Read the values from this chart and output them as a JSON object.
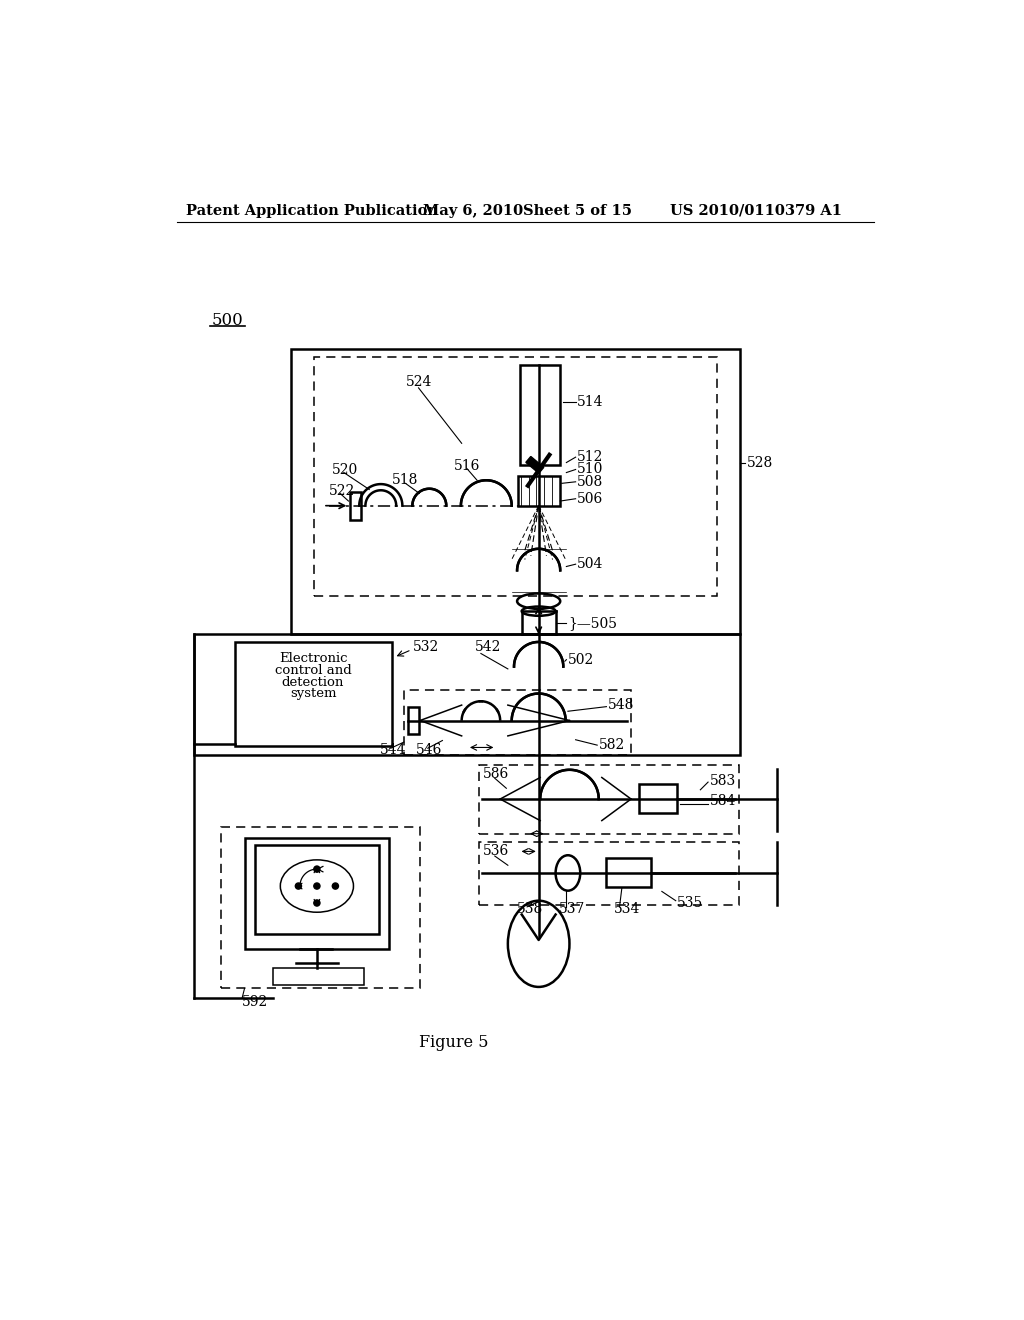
{
  "bg_color": "#ffffff",
  "title_header": "Patent Application Publication",
  "title_date": "May 6, 2010",
  "title_sheet": "Sheet 5 of 15",
  "title_patent": "US 2010/0110379 A1",
  "fig_label": "500",
  "figure_caption": "Figure 5"
}
